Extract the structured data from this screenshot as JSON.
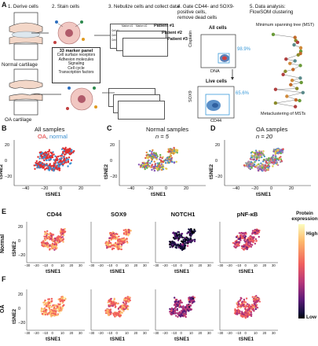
{
  "panel_a": {
    "label": "A",
    "steps": [
      {
        "title": "1. Derive cells"
      },
      {
        "title": "2. Stain cells"
      },
      {
        "title": "3. Nebulize cells and collect data"
      },
      {
        "title": "4. Gate CD44- and SOX9-\npositive cells,\nremove dead cells"
      },
      {
        "title": "5. Data analysis:\nFlowSOM clustering"
      }
    ],
    "normal_cartilage": "Normal cartilage",
    "oa_cartilage": "OA cartilage",
    "marker_panel": {
      "title": "33 marker panel",
      "items": [
        "Cell surface receptors",
        "Adhesion molecules",
        "Signaling",
        "Cell cycle",
        "Transcription factors"
      ]
    },
    "patients": [
      "Patient #1",
      "Patient #2",
      "Patient #3"
    ],
    "table": {
      "col_headers": [
        "Marker #1",
        "Marker #2",
        "Marker #3"
      ],
      "row_headers": [
        "Cell #1",
        "Cell #2",
        "Cell #3"
      ]
    },
    "gate1": {
      "title": "All cells",
      "xlabel": "DNA",
      "ylabel": "Cisplatin",
      "pct": "98.9%"
    },
    "gate2": {
      "title": "Live cells",
      "xlabel": "CD44",
      "ylabel": "SOX9",
      "pct": "65.6%"
    },
    "mst_label": "Minimum spanning tree (MST)",
    "meta_label": "Metaclustering of MSTs"
  },
  "panel_b": {
    "label": "B",
    "title_main": "All samples",
    "oa": "OA",
    "sep": ", ",
    "normal": "normal",
    "xlabel": "tSNE1",
    "ylabel": "tSNE2",
    "xticks": [
      "−40",
      "−20",
      "0",
      "20"
    ],
    "yticks": [
      "20",
      "0",
      "−20"
    ]
  },
  "panel_c": {
    "label": "C",
    "title": "Normal samples",
    "n": "n = 5",
    "xlabel": "tSNE1",
    "ylabel": "tSNE2",
    "xticks": [
      "−40",
      "−20",
      "0",
      "20"
    ],
    "yticks": [
      "20",
      "0",
      "−20"
    ]
  },
  "panel_d": {
    "label": "D",
    "title": "OA samples",
    "n": "n = 20",
    "xlabel": "tSNE1",
    "ylabel": "tSNE2",
    "xticks": [
      "−40",
      "−20",
      "0",
      "20"
    ],
    "yticks": [
      "20",
      "0",
      "−20"
    ]
  },
  "panel_e": {
    "label": "E",
    "row": "Normal",
    "markers": [
      "CD44",
      "SOX9",
      "NOTCH1",
      "pNF-κB"
    ],
    "ylabel": "tSNE2",
    "xlabel": "tSNE1",
    "xticks": [
      "−30",
      "−20",
      "−10",
      "0",
      "10",
      "20",
      "30"
    ],
    "yticks": [
      "20",
      "0",
      "−20"
    ]
  },
  "panel_f": {
    "label": "F",
    "row": "OA",
    "ylabel": "tSNE2",
    "xlabel": "tSNE1",
    "xticks": [
      "−30",
      "−20",
      "−10",
      "0",
      "10",
      "20",
      "30"
    ],
    "yticks": [
      "20",
      "0",
      "−20"
    ]
  },
  "colorbar": {
    "title": "Protein\nexpression",
    "high": "High",
    "low": "Low"
  },
  "colors": {
    "oa": "#e03030",
    "normal": "#3a8fd0",
    "gate_box": "#3a9ad9"
  }
}
